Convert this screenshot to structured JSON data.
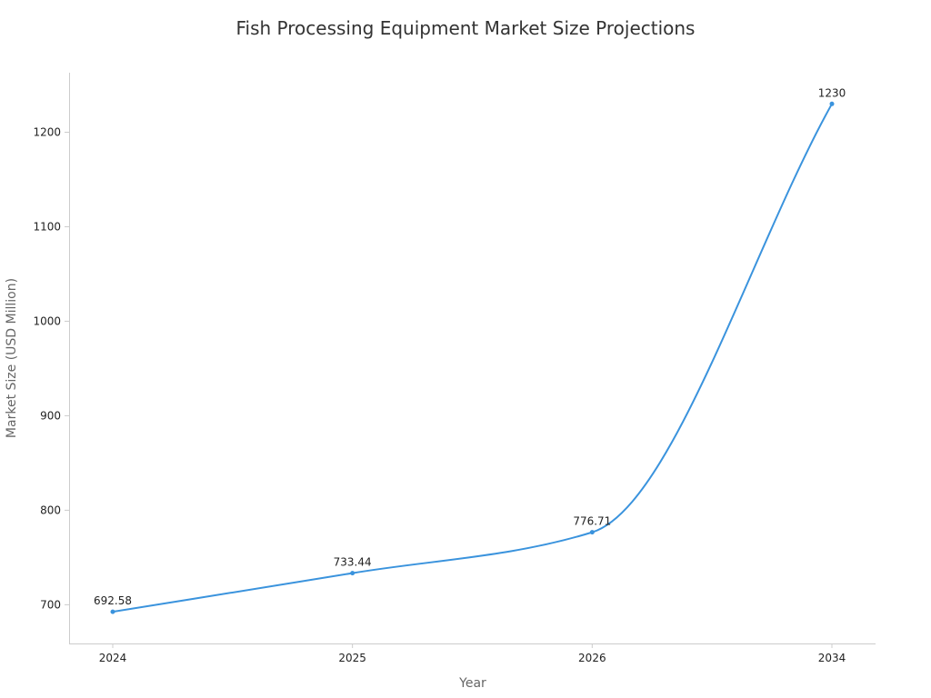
{
  "chart_data": {
    "type": "line",
    "title": "Fish Processing Equipment Market Size Projections",
    "xlabel": "Year",
    "ylabel": "Market Size (USD Million)",
    "categories": [
      "2024",
      "2025",
      "2026",
      "2034"
    ],
    "series": [
      {
        "name": "Market Size",
        "values": [
          692.58,
          733.44,
          776.71,
          1230
        ],
        "labels": [
          "692.58",
          "733.44",
          "776.71",
          "1230"
        ]
      }
    ],
    "yticks": [
      700,
      800,
      900,
      1000,
      1100,
      1200
    ],
    "ytick_labels": [
      "700",
      "800",
      "900",
      "1000",
      "1100",
      "1200"
    ],
    "ylim": [
      659,
      1263
    ],
    "grid": false,
    "line_color": "#3a93dd"
  }
}
